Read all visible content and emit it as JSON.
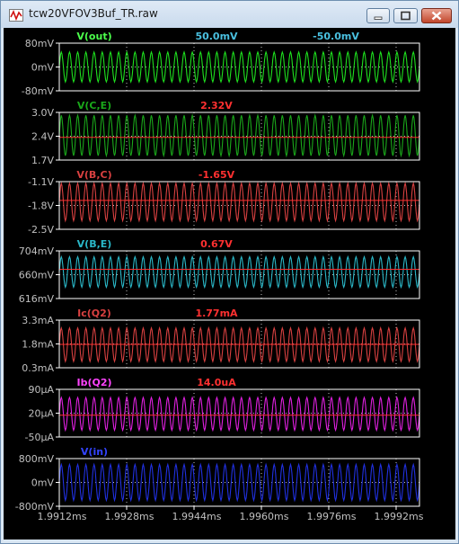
{
  "window": {
    "title": "tcw20VFOV3Buf_TR.raw",
    "controls": [
      "minimize",
      "maximize",
      "close"
    ]
  },
  "colors": {
    "background": "#000000",
    "frame": "#ffffff",
    "grid": "#c0c0c0",
    "axis_text": "#c0c0c0"
  },
  "panes": [
    {
      "trace": "V(out)",
      "color": "#1ee01e",
      "title_color": "#4cff4c",
      "cursor1": "50.0mV",
      "cursor2": "-50.0mV",
      "cursor_color": "#4ac0e0",
      "yticks": [
        "80mV",
        "0mV",
        "-80mV"
      ],
      "yrange": [
        -80,
        80
      ],
      "unit": "mV",
      "signal": {
        "offset": 0,
        "amplitude": 50
      },
      "cursor_level": null
    },
    {
      "trace": "V(C,E)",
      "color": "#1aa81a",
      "title_color": "#1aa81a",
      "cursor1": "2.32V",
      "cursor2": "",
      "cursor_color": "#ff3030",
      "yticks": [
        "3.0V",
        "2.4V",
        "1.7V"
      ],
      "yrange": [
        1.7,
        3.0
      ],
      "unit": "V",
      "signal": {
        "offset": 2.37,
        "amplitude": 0.55
      },
      "cursor_level": 2.32
    },
    {
      "trace": "V(B,C)",
      "color": "#d84040",
      "title_color": "#d84040",
      "cursor1": "-1.65V",
      "cursor2": "",
      "cursor_color": "#ff3030",
      "yticks": [
        "-1.1V",
        "-1.8V",
        "-2.5V"
      ],
      "yrange": [
        -2.5,
        -1.1
      ],
      "unit": "V",
      "signal": {
        "offset": -1.7,
        "amplitude": 0.55
      },
      "cursor_level": -1.65
    },
    {
      "trace": "V(B,E)",
      "color": "#2ab8c8",
      "title_color": "#2ab8c8",
      "cursor1": "0.67V",
      "cursor2": "",
      "cursor_color": "#ff3030",
      "yticks": [
        "704mV",
        "660mV",
        "616mV"
      ],
      "yrange": [
        616,
        704
      ],
      "unit": "mV",
      "signal": {
        "offset": 665,
        "amplitude": 28
      },
      "cursor_level": 670
    },
    {
      "trace": "Ic(Q2)",
      "color": "#d84040",
      "title_color": "#d84040",
      "cursor1": "1.77mA",
      "cursor2": "",
      "cursor_color": "#ff3030",
      "yticks": [
        "3.3mA",
        "1.8mA",
        "0.3mA"
      ],
      "yrange": [
        0.3,
        3.3
      ],
      "unit": "mA",
      "signal": {
        "offset": 1.75,
        "amplitude": 1.05
      },
      "cursor_level": 1.77
    },
    {
      "trace": "Ib(Q2)",
      "color": "#e020e0",
      "title_color": "#ff44ff",
      "cursor1": "14.0uA",
      "cursor2": "",
      "cursor_color": "#ff3030",
      "yticks": [
        "90µA",
        "20µA",
        "-50µA"
      ],
      "yrange": [
        -50,
        90
      ],
      "unit": "µA",
      "signal": {
        "offset": 18,
        "amplitude": 48
      },
      "cursor_level": 14
    },
    {
      "trace": "V(in)",
      "color": "#2030e0",
      "title_color": "#3344ff",
      "cursor1": "",
      "cursor2": "",
      "cursor_color": "#ff3030",
      "yticks": [
        "800mV",
        "0mV",
        "-800mV"
      ],
      "yrange": [
        -800,
        800
      ],
      "unit": "mV",
      "signal": {
        "offset": 0,
        "amplitude": 600
      },
      "cursor_level": null
    }
  ],
  "xaxis": {
    "ticks": [
      "1.9912ms",
      "1.9928ms",
      "1.9944ms",
      "1.9960ms",
      "1.9976ms",
      "1.9992ms"
    ],
    "range_ms": [
      1.9912,
      2.0
    ],
    "waveform_cycles": 44
  }
}
